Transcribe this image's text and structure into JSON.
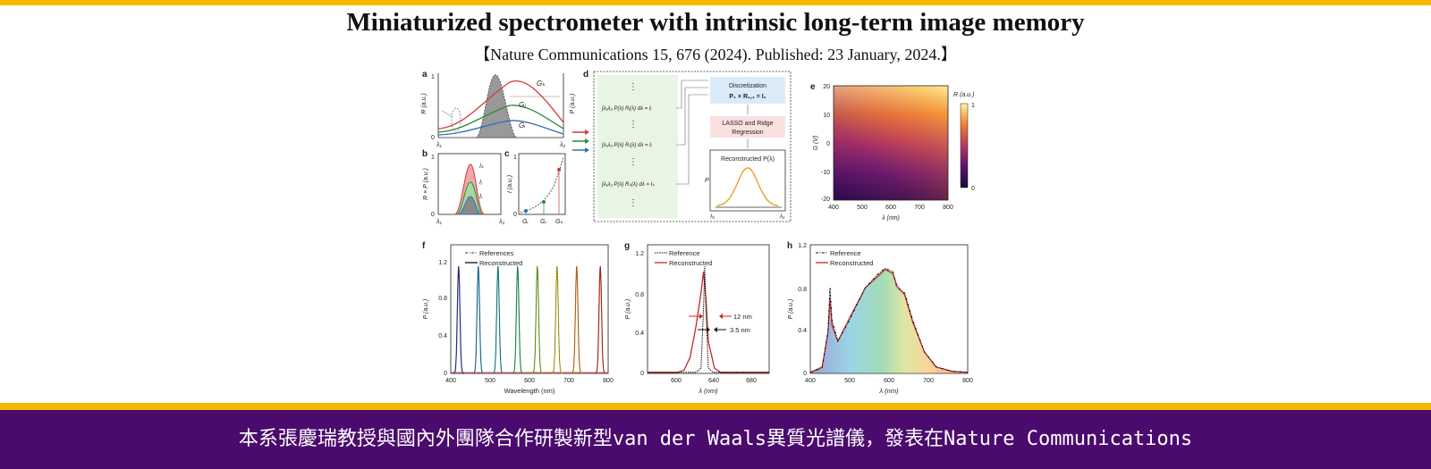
{
  "header": {
    "title": "Miniaturized spectrometer with intrinsic long-term image memory",
    "citation": "【Nature Communications 15, 676 (2024). Published: 23 January, 2024.】"
  },
  "figure": {
    "panel_letters": [
      "a",
      "b",
      "c",
      "d",
      "e",
      "f",
      "g",
      "h"
    ],
    "a": {
      "ylabel_left": "R (a.u.)",
      "ylabel_right": "P (a.u.)",
      "curves": [
        "Gₖ",
        "Gⱼ",
        "Gᵢ"
      ],
      "x_ticks": [
        "λ₁",
        "λ₂"
      ],
      "y_ticks": [
        "1",
        "0"
      ]
    },
    "b": {
      "ylabel": "R × P (a.u.)",
      "curves": [
        "Iₖ",
        "Iⱼ",
        "Iᵢ"
      ],
      "x_ticks": [
        "λ₁",
        "λ₂"
      ],
      "y_ticks": [
        "1",
        "0"
      ]
    },
    "c": {
      "ylabel": "I (a.u.)",
      "x_ticks": [
        "Gᵢ",
        "Gⱼ",
        "Gₖ"
      ],
      "y_ticks": [
        "1",
        "0"
      ]
    },
    "d": {
      "equations": [
        "∫λ₁λ₂ P(λ) Rᵢ(λ) dλ = Iᵢ",
        "∫λ₁λ₂ P(λ) Rⱼ(λ) dλ = Iⱼ",
        "∫λ₁λ₂ P(λ) Rₖ(λ) dλ = Iₖ"
      ],
      "box1_line1": "Discretization",
      "box1_line2": "P₁ × R₁,₁ = I₁",
      "box2_line1": "LASSO and Ridge",
      "box2_line2": "Regression",
      "box3_title": "Reconstructed P(λ)",
      "box3_ylabel": "P",
      "x_ticks": [
        "λ₁",
        "λ₂"
      ]
    },
    "e": {
      "colorbar_label": "R (a.u.)",
      "colorbar_ticks": [
        "1",
        "0"
      ],
      "ylabel": "G (V)",
      "xlabel": "λ (nm)",
      "x_ticks": [
        "400",
        "500",
        "600",
        "700",
        "800"
      ],
      "y_ticks": [
        "20",
        "10",
        "0",
        "-10",
        "-20"
      ]
    },
    "f": {
      "legend": [
        "References",
        "Reconstructed"
      ],
      "xlabel": "Wavelength (nm)",
      "ylabel": "P (a.u.)",
      "x_ticks": [
        "400",
        "500",
        "600",
        "700",
        "800"
      ],
      "y_ticks": [
        "1.2",
        "0.8",
        "0.4",
        "0"
      ]
    },
    "g": {
      "legend": [
        "Reference",
        "Reconstructed"
      ],
      "xlabel": "λ (nm)",
      "ylabel": "P (a.u.)",
      "x_ticks": [
        "600",
        "620",
        "640",
        "660",
        "680"
      ],
      "y_ticks": [
        "1.2",
        "0.8",
        "0.4",
        "0"
      ],
      "annotation_red": "12 nm",
      "annotation_black": "3.5 nm"
    },
    "h": {
      "legend": [
        "Reference",
        "Reconstructed"
      ],
      "xlabel": "λ (nm)",
      "ylabel": "P (a.u.)",
      "x_ticks": [
        "400",
        "500",
        "600",
        "700",
        "800"
      ],
      "y_ticks": [
        "1.2",
        "0.8",
        "0.4",
        "0"
      ]
    }
  },
  "chart_data": [
    {
      "type": "line",
      "panel": "f",
      "x_range": [
        400,
        800
      ],
      "ylim": [
        0,
        1.2
      ],
      "series": [
        {
          "name": "References",
          "peak_centers_nm": [
            420,
            470,
            520,
            570,
            620,
            670,
            720,
            780
          ],
          "peak_height": 1.0
        },
        {
          "name": "Reconstructed",
          "peak_centers_nm": [
            420,
            470,
            520,
            570,
            620,
            670,
            720,
            780
          ],
          "peak_height": 1.0
        }
      ],
      "xlabel": "Wavelength (nm)",
      "ylabel": "P (a.u.)"
    },
    {
      "type": "line",
      "panel": "g",
      "x_range": [
        590,
        690
      ],
      "ylim": [
        0,
        1.2
      ],
      "series": [
        {
          "name": "Reference",
          "x": [
            590,
            630,
            634,
            636,
            637,
            638,
            640,
            644,
            690
          ],
          "y": [
            0.01,
            0.01,
            0.05,
            0.6,
            1.0,
            0.6,
            0.05,
            0.01,
            0.01
          ]
        },
        {
          "name": "Reconstructed",
          "x": [
            590,
            615,
            620,
            625,
            630,
            634,
            636,
            638,
            640,
            645,
            650,
            690
          ],
          "y": [
            0.01,
            0.01,
            0.03,
            0.15,
            0.45,
            0.75,
            0.95,
            0.7,
            0.3,
            0.05,
            0.01,
            0.01
          ]
        }
      ],
      "xlabel": "λ (nm)",
      "ylabel": "P (a.u.)"
    },
    {
      "type": "line",
      "panel": "h",
      "x_range": [
        400,
        800
      ],
      "ylim": [
        0,
        1.2
      ],
      "series": [
        {
          "name": "Reference",
          "x": [
            400,
            430,
            445,
            450,
            455,
            470,
            500,
            540,
            570,
            590,
            610,
            620,
            640,
            660,
            690,
            720,
            760,
            800
          ],
          "y": [
            0.01,
            0.05,
            0.4,
            0.8,
            0.5,
            0.3,
            0.5,
            0.8,
            0.92,
            0.98,
            0.95,
            0.8,
            0.75,
            0.5,
            0.2,
            0.06,
            0.02,
            0.01
          ]
        },
        {
          "name": "Reconstructed",
          "x": [
            400,
            430,
            445,
            450,
            455,
            470,
            500,
            540,
            570,
            590,
            610,
            620,
            640,
            660,
            690,
            720,
            760,
            800
          ],
          "y": [
            0.01,
            0.06,
            0.38,
            0.7,
            0.45,
            0.3,
            0.52,
            0.8,
            0.9,
            0.97,
            0.93,
            0.82,
            0.73,
            0.48,
            0.2,
            0.06,
            0.02,
            0.01
          ]
        }
      ],
      "xlabel": "λ (nm)",
      "ylabel": "P (a.u.)"
    },
    {
      "type": "heatmap",
      "panel": "e",
      "x_range": [
        400,
        800
      ],
      "y_range": [
        -20,
        20
      ],
      "colorbar_range": [
        0,
        1
      ],
      "xlabel": "λ (nm)",
      "ylabel": "G (V)"
    }
  ],
  "banner": {
    "text": "本系張慶瑞教授與國內外團隊合作研製新型van der Waals異質光譜儀，發表在Nature Communications"
  },
  "colors": {
    "top_bar": "#f5b800",
    "banner_bg": "#4b0a6e",
    "gold_stripe": "#f5b800"
  }
}
